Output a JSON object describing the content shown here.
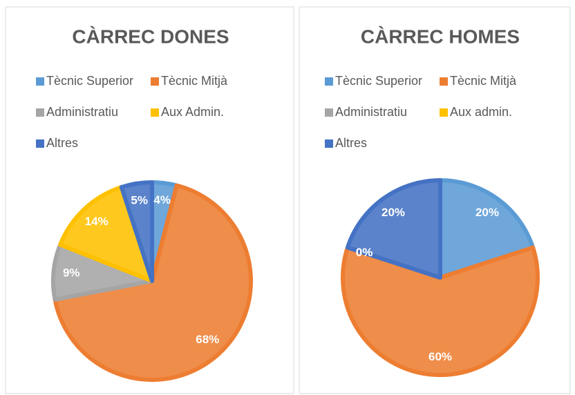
{
  "chart_data": [
    {
      "type": "pie",
      "title": "CÀRREC DONES",
      "categories": [
        "Tècnic Superior",
        "Tècnic Mitjà",
        "Administratiu",
        "Aux Admin.",
        "Altres"
      ],
      "values": [
        4,
        68,
        9,
        14,
        5
      ],
      "value_labels": [
        "4%",
        "68%",
        "9%",
        "14%",
        "5%"
      ],
      "colors": [
        "#5b9bd5",
        "#ed7d31",
        "#a5a5a5",
        "#ffc000",
        "#4472c4"
      ]
    },
    {
      "type": "pie",
      "title": "CÀRREC HOMES",
      "categories": [
        "Tècnic Superior",
        "Tècnic Mitjà",
        "Administratiu",
        "Aux admin.",
        "Altres"
      ],
      "values": [
        20,
        60,
        0,
        0,
        20
      ],
      "value_labels": [
        "20%",
        "60%",
        "0%",
        "0%",
        "20%"
      ],
      "colors": [
        "#5b9bd5",
        "#ed7d31",
        "#a5a5a5",
        "#ffc000",
        "#4472c4"
      ]
    }
  ]
}
